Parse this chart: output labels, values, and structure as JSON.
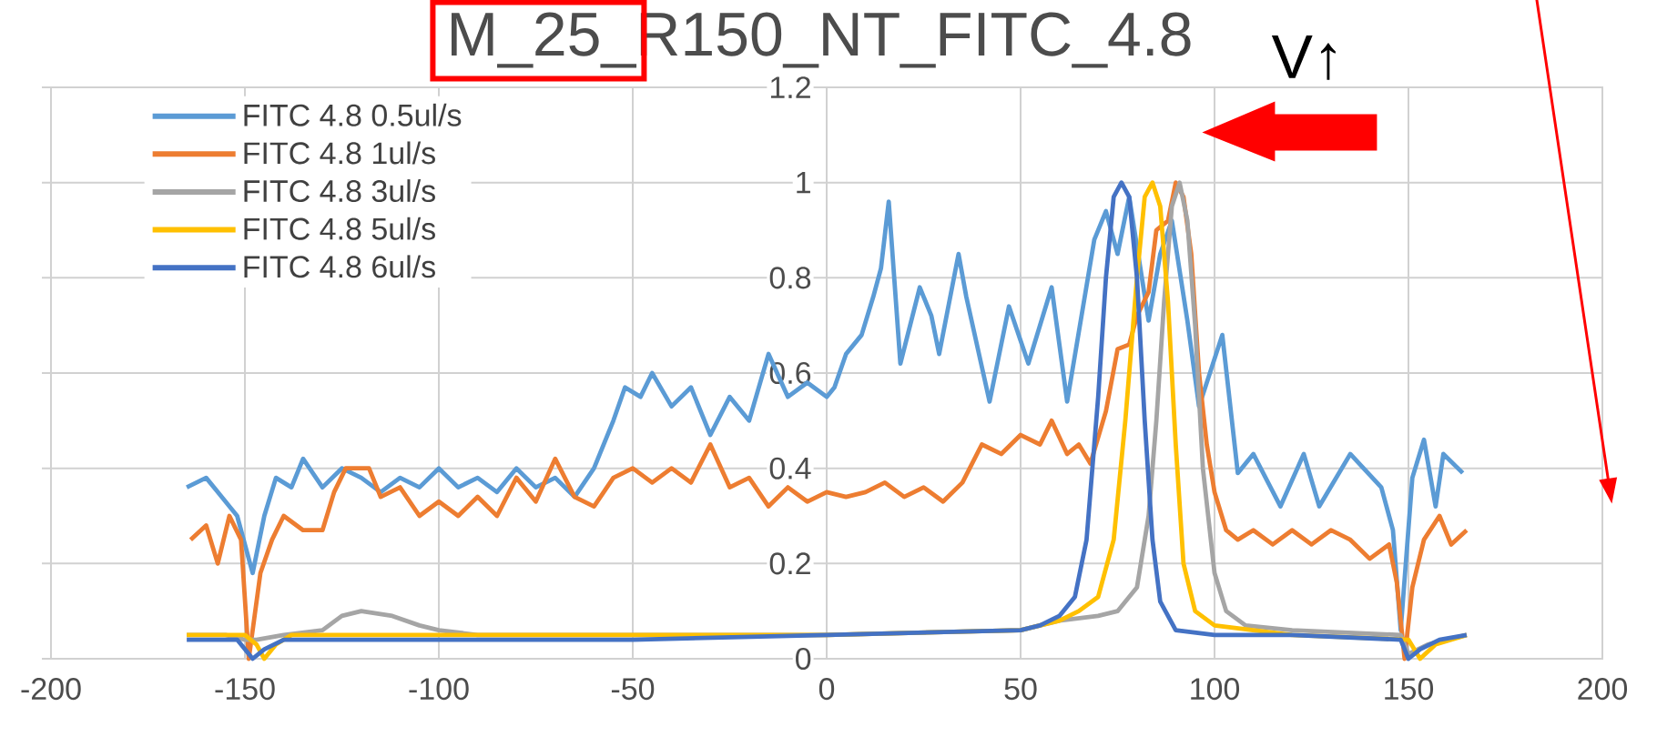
{
  "chart_data": {
    "type": "line",
    "title": "M_25_R150_NT_FITC_4.8",
    "annotations": [
      "V↑"
    ],
    "xlim": [
      -200,
      200
    ],
    "ylim": [
      0,
      1.2
    ],
    "xticks": [
      -200,
      -150,
      -100,
      -50,
      0,
      50,
      100,
      150,
      200
    ],
    "yticks": [
      0,
      0.2,
      0.4,
      0.6,
      0.8,
      1,
      1.2
    ],
    "grid": true,
    "legend": "top left",
    "series": [
      {
        "name": "FITC 4.8 0.5ul/s",
        "color": "#5b9bd5",
        "x": [
          -165,
          -160,
          -157,
          -155,
          -152,
          -148,
          -145,
          -142,
          -138,
          -135,
          -130,
          -125,
          -120,
          -115,
          -110,
          -105,
          -100,
          -95,
          -90,
          -85,
          -80,
          -75,
          -70,
          -65,
          -60,
          -55,
          -52,
          -48,
          -45,
          -40,
          -35,
          -30,
          -25,
          -20,
          -15,
          -10,
          -5,
          0,
          2,
          5,
          9,
          12,
          14,
          16,
          19,
          24,
          27,
          29,
          34,
          36,
          42,
          47,
          52,
          58,
          62,
          69,
          72,
          75,
          78,
          83,
          86,
          89,
          93,
          96,
          102,
          106,
          110,
          117,
          123,
          127,
          135,
          143,
          146,
          148,
          151,
          154,
          157,
          159,
          164
        ],
        "values": [
          0.36,
          0.38,
          0.35,
          0.33,
          0.3,
          0.18,
          0.3,
          0.38,
          0.36,
          0.42,
          0.36,
          0.4,
          0.38,
          0.35,
          0.38,
          0.36,
          0.4,
          0.36,
          0.38,
          0.35,
          0.4,
          0.36,
          0.38,
          0.34,
          0.4,
          0.5,
          0.57,
          0.55,
          0.6,
          0.53,
          0.57,
          0.47,
          0.55,
          0.5,
          0.64,
          0.55,
          0.58,
          0.55,
          0.57,
          0.64,
          0.68,
          0.76,
          0.82,
          0.96,
          0.62,
          0.78,
          0.72,
          0.64,
          0.85,
          0.76,
          0.54,
          0.74,
          0.62,
          0.78,
          0.54,
          0.88,
          0.94,
          0.85,
          0.97,
          0.71,
          0.85,
          0.92,
          0.71,
          0.53,
          0.68,
          0.39,
          0.43,
          0.32,
          0.43,
          0.32,
          0.43,
          0.36,
          0.27,
          0.06,
          0.38,
          0.46,
          0.32,
          0.43,
          0.39
        ]
      },
      {
        "name": "FITC 4.8 1ul/s",
        "color": "#ed7d31",
        "x": [
          -164,
          -160,
          -157,
          -154,
          -151,
          -149,
          -146,
          -143,
          -140,
          -135,
          -130,
          -127,
          -124,
          -118,
          -115,
          -110,
          -105,
          -100,
          -95,
          -90,
          -85,
          -80,
          -75,
          -70,
          -65,
          -60,
          -55,
          -50,
          -45,
          -40,
          -35,
          -30,
          -25,
          -20,
          -15,
          -10,
          -5,
          0,
          5,
          10,
          15,
          20,
          25,
          30,
          35,
          40,
          45,
          50,
          55,
          58,
          62,
          65,
          68,
          72,
          75,
          78,
          80,
          83,
          85,
          88,
          90,
          92,
          94,
          96,
          98,
          100,
          103,
          106,
          110,
          115,
          120,
          125,
          130,
          135,
          140,
          145,
          147,
          149,
          151,
          154,
          158,
          161,
          165
        ],
        "values": [
          0.25,
          0.28,
          0.2,
          0.3,
          0.25,
          0.0,
          0.18,
          0.25,
          0.3,
          0.27,
          0.27,
          0.35,
          0.4,
          0.4,
          0.34,
          0.36,
          0.3,
          0.33,
          0.3,
          0.34,
          0.3,
          0.38,
          0.33,
          0.42,
          0.34,
          0.32,
          0.38,
          0.4,
          0.37,
          0.4,
          0.37,
          0.45,
          0.36,
          0.38,
          0.32,
          0.36,
          0.33,
          0.35,
          0.34,
          0.35,
          0.37,
          0.34,
          0.36,
          0.33,
          0.37,
          0.45,
          0.43,
          0.47,
          0.45,
          0.5,
          0.43,
          0.45,
          0.41,
          0.52,
          0.65,
          0.66,
          0.72,
          0.77,
          0.9,
          0.92,
          1.0,
          0.97,
          0.85,
          0.6,
          0.45,
          0.35,
          0.27,
          0.25,
          0.27,
          0.24,
          0.27,
          0.24,
          0.27,
          0.25,
          0.21,
          0.24,
          0.16,
          0.0,
          0.15,
          0.25,
          0.3,
          0.24,
          0.27
        ]
      },
      {
        "name": "FITC 4.8 3ul/s",
        "color": "#a5a5a5",
        "x": [
          -165,
          -155,
          -150,
          -147,
          -140,
          -130,
          -125,
          -120,
          -112,
          -105,
          -100,
          -90,
          -50,
          0,
          50,
          60,
          70,
          75,
          80,
          83,
          85,
          87,
          89,
          91,
          93,
          95,
          97,
          100,
          103,
          108,
          120,
          148,
          150,
          155,
          165
        ],
        "values": [
          0.05,
          0.05,
          0.04,
          0.04,
          0.05,
          0.06,
          0.09,
          0.1,
          0.09,
          0.07,
          0.06,
          0.05,
          0.05,
          0.05,
          0.06,
          0.08,
          0.09,
          0.1,
          0.15,
          0.3,
          0.5,
          0.75,
          0.95,
          1.0,
          0.92,
          0.7,
          0.4,
          0.18,
          0.1,
          0.07,
          0.06,
          0.05,
          0.01,
          0.03,
          0.05
        ]
      },
      {
        "name": "FITC 4.8 5ul/s",
        "color": "#ffc000",
        "x": [
          -165,
          -150,
          -147,
          -145,
          -142,
          -138,
          -100,
          -50,
          0,
          50,
          60,
          65,
          70,
          74,
          77,
          80,
          82,
          84,
          86,
          88,
          90,
          92,
          95,
          100,
          120,
          150,
          153,
          157,
          165
        ],
        "values": [
          0.05,
          0.05,
          0.03,
          0.0,
          0.03,
          0.05,
          0.05,
          0.05,
          0.05,
          0.06,
          0.08,
          0.1,
          0.13,
          0.25,
          0.5,
          0.8,
          0.97,
          1.0,
          0.95,
          0.75,
          0.45,
          0.2,
          0.1,
          0.07,
          0.05,
          0.04,
          0.0,
          0.03,
          0.05
        ]
      },
      {
        "name": "FITC 4.8 6ul/s",
        "color": "#4472c4",
        "x": [
          -165,
          -152,
          -150,
          -148,
          -145,
          -140,
          -100,
          -50,
          0,
          50,
          55,
          60,
          64,
          67,
          70,
          72,
          74,
          76,
          78,
          80,
          82,
          84,
          86,
          90,
          100,
          120,
          148,
          150,
          153,
          158,
          165
        ],
        "values": [
          0.04,
          0.04,
          0.02,
          0.0,
          0.02,
          0.04,
          0.04,
          0.04,
          0.05,
          0.06,
          0.07,
          0.09,
          0.13,
          0.25,
          0.55,
          0.8,
          0.97,
          1.0,
          0.97,
          0.8,
          0.5,
          0.25,
          0.12,
          0.06,
          0.05,
          0.05,
          0.04,
          0.0,
          0.02,
          0.04,
          0.05
        ]
      }
    ]
  }
}
